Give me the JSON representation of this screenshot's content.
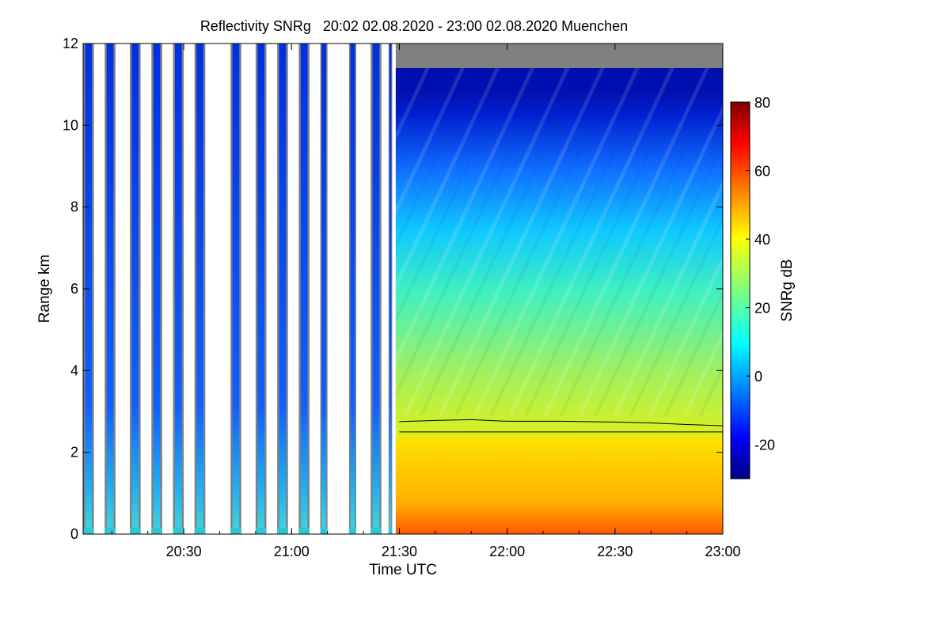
{
  "chart_data": {
    "type": "heatmap",
    "title": "Reflectivity SNRg   20:02 02.08.2020 - 23:00 02.08.2020 Muenchen",
    "xlabel": "Time UTC",
    "ylabel": "Range km",
    "xlim": [
      "20:02",
      "23:00"
    ],
    "ylim": [
      0,
      12
    ],
    "x_ticks": [
      "20:30",
      "21:00",
      "21:30",
      "22:00",
      "22:30",
      "23:00"
    ],
    "y_ticks": [
      "0",
      "2",
      "4",
      "6",
      "8",
      "10",
      "12"
    ],
    "colorbar": {
      "label": "SNRg dB",
      "range": [
        -30,
        80
      ],
      "ticks": [
        "-20",
        "0",
        "20",
        "40",
        "60",
        "80"
      ],
      "colormap": "jet"
    },
    "no_signal_color": "#808080",
    "intermittent_segments": [
      {
        "start": "20:02",
        "end": "20:05"
      },
      {
        "start": "20:08",
        "end": "20:11"
      },
      {
        "start": "20:15",
        "end": "20:18"
      },
      {
        "start": "20:21",
        "end": "20:24"
      },
      {
        "start": "20:27",
        "end": "20:30"
      },
      {
        "start": "20:33",
        "end": "20:36"
      },
      {
        "start": "20:43",
        "end": "20:46"
      },
      {
        "start": "20:50",
        "end": "20:53"
      },
      {
        "start": "20:56",
        "end": "20:59"
      },
      {
        "start": "21:02",
        "end": "21:05"
      },
      {
        "start": "21:08",
        "end": "21:10"
      },
      {
        "start": "21:16",
        "end": "21:18"
      },
      {
        "start": "21:22",
        "end": "21:25"
      },
      {
        "start": "21:27",
        "end": "21:28"
      }
    ],
    "continuous_segment": {
      "start": "21:29",
      "end": "23:00"
    },
    "boundary_lines": [
      {
        "name": "",
        "points": [
          [
            "21:30",
            2.75
          ],
          [
            "21:40",
            2.78
          ],
          [
            "21:50",
            2.8
          ],
          [
            "22:00",
            2.76
          ],
          [
            "22:15",
            2.76
          ],
          [
            "22:30",
            2.74
          ],
          [
            "22:40",
            2.72
          ],
          [
            "22:50",
            2.68
          ],
          [
            "23:00",
            2.65
          ]
        ]
      },
      {
        "name": "",
        "points": [
          [
            "21:30",
            2.5
          ],
          [
            "23:00",
            2.5
          ]
        ]
      }
    ]
  }
}
